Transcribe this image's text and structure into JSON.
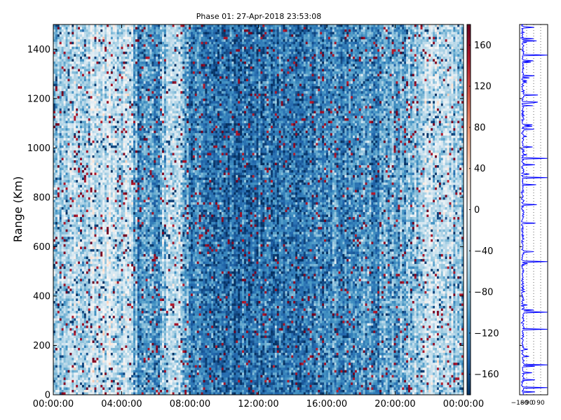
{
  "chart_data": {
    "type": "heatmap",
    "title": "Phase 01: 27-Apr-2018 23:53:08",
    "ylabel": "Range (Km)",
    "xlabel": "",
    "x_ticks": [
      "00:00:00",
      "04:00:00",
      "08:00:00",
      "12:00:00",
      "16:00:00",
      "20:00:00",
      "00:00:00"
    ],
    "x_range_hours": [
      0,
      24
    ],
    "y_ticks": [
      0,
      200,
      400,
      600,
      800,
      1000,
      1200,
      1400
    ],
    "ylim": [
      0,
      1500
    ],
    "colorbar": {
      "ticks": [
        160,
        120,
        80,
        40,
        0,
        -40,
        -80,
        -120,
        -160
      ],
      "tick_labels": [
        "160",
        "120",
        "80",
        "40",
        "0",
        "−40",
        "−80",
        "−120",
        "−160"
      ],
      "range": [
        -180,
        180
      ],
      "colormap": "RdBu_r",
      "color_stops": [
        "#053061",
        "#2166ac",
        "#4393c3",
        "#92c5de",
        "#d1e5f0",
        "#f7f7f7",
        "#fddbc7",
        "#f4a582",
        "#d6604d",
        "#b2182b",
        "#67001f"
      ]
    },
    "column_mean_profile": [
      {
        "hour": 0.0,
        "mean_deg": -60
      },
      {
        "hour": 1.0,
        "mean_deg": -55
      },
      {
        "hour": 1.6,
        "mean_deg": -45
      },
      {
        "hour": 2.5,
        "mean_deg": -35
      },
      {
        "hour": 3.5,
        "mean_deg": -40
      },
      {
        "hour": 4.5,
        "mean_deg": -50
      },
      {
        "hour": 5.0,
        "mean_deg": -110
      },
      {
        "hour": 6.0,
        "mean_deg": -115
      },
      {
        "hour": 6.8,
        "mean_deg": -40
      },
      {
        "hour": 7.5,
        "mean_deg": -60
      },
      {
        "hour": 8.0,
        "mean_deg": -120
      },
      {
        "hour": 10.0,
        "mean_deg": -135
      },
      {
        "hour": 12.0,
        "mean_deg": -130
      },
      {
        "hour": 14.0,
        "mean_deg": -125
      },
      {
        "hour": 16.0,
        "mean_deg": -120
      },
      {
        "hour": 18.0,
        "mean_deg": -110
      },
      {
        "hour": 19.5,
        "mean_deg": -100
      },
      {
        "hour": 20.5,
        "mean_deg": -85
      },
      {
        "hour": 21.5,
        "mean_deg": -60
      },
      {
        "hour": 22.0,
        "mean_deg": -40
      },
      {
        "hour": 22.8,
        "mean_deg": -50
      },
      {
        "hour": 24.0,
        "mean_deg": -70
      }
    ],
    "side_profile": {
      "x_ticks": [
        "−180",
        "−90",
        "0",
        "90"
      ],
      "x_range": [
        -180,
        180
      ],
      "line_color": "#0000ff",
      "ylim": [
        0,
        1500
      ]
    }
  }
}
